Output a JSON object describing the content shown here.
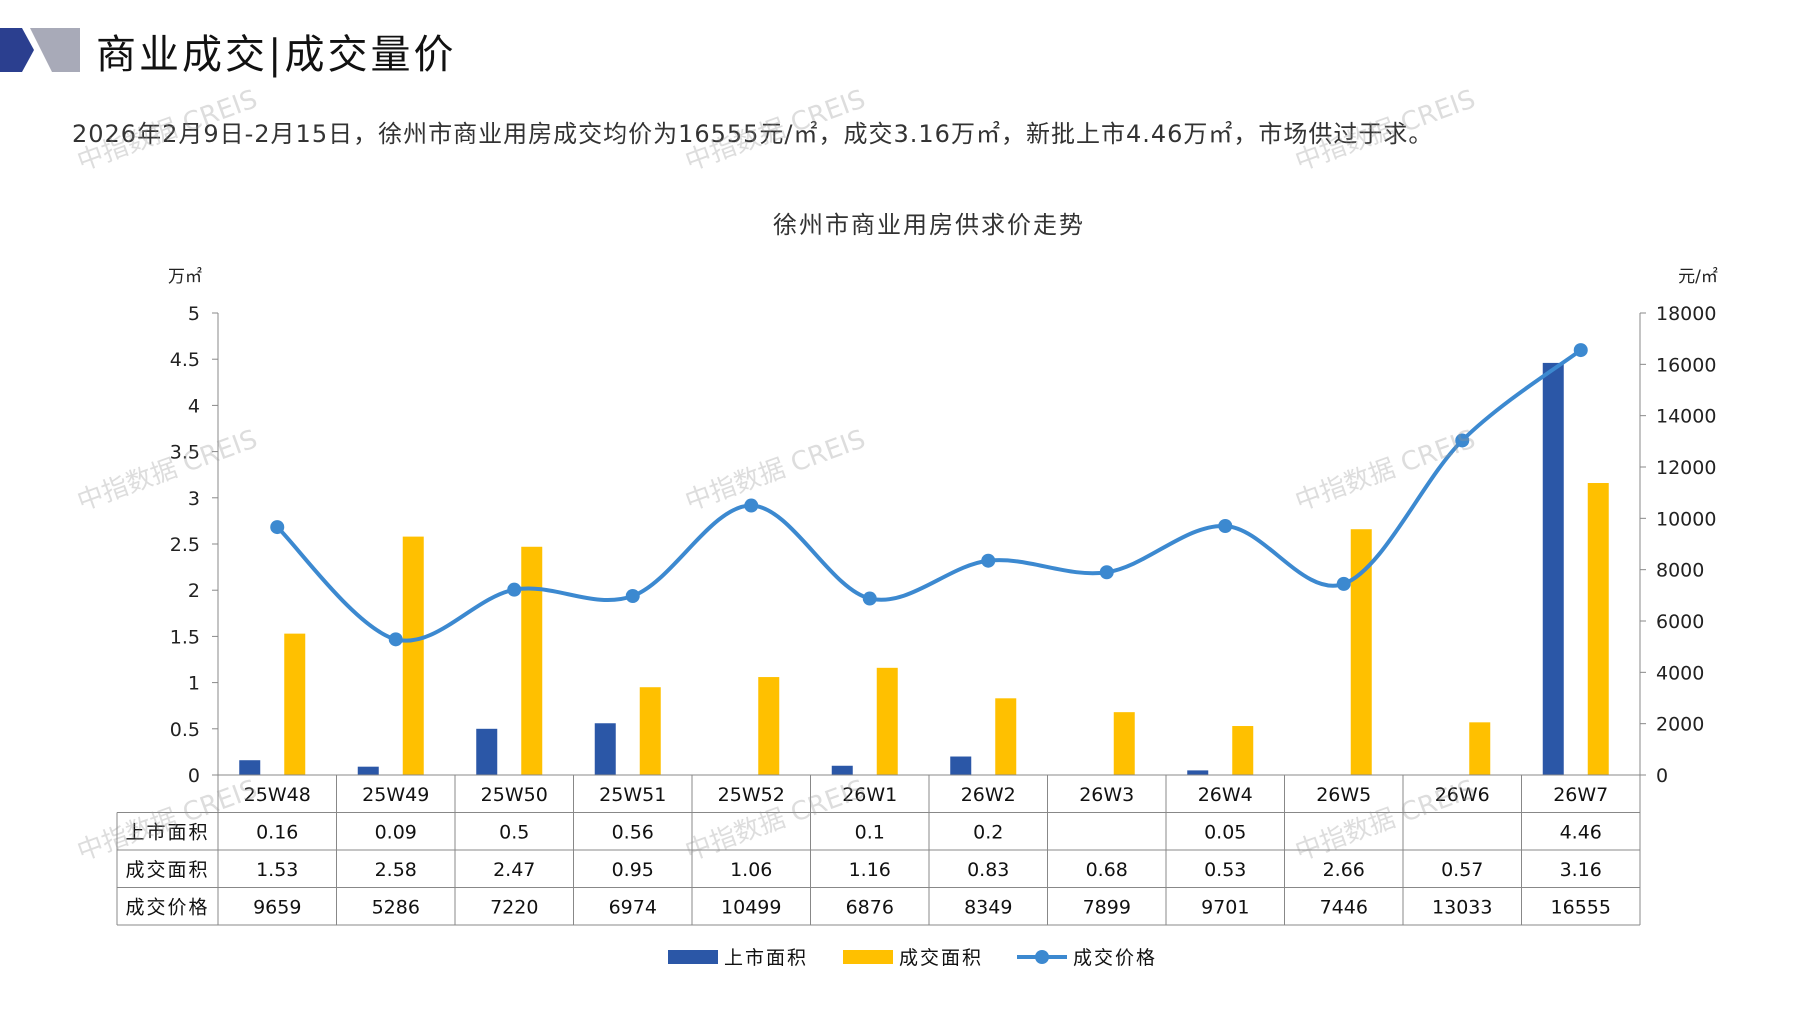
{
  "header": {
    "title": "商业成交|成交量价",
    "summary": "2026年2月9日-2月15日，徐州市商业用房成交均价为16555元/㎡，成交3.16万㎡，新批上市4.46万㎡，市场供过于求。"
  },
  "watermark_text": "中指数据 CREIS",
  "colors": {
    "supply": "#2b57a7",
    "deal": "#ffc000",
    "price": "#3c89d0",
    "logo_dark": "#2b3f8f",
    "logo_light": "#a8aab8"
  },
  "chart_data": {
    "type": "bar",
    "title": "徐州市商业用房供求价走势",
    "y_left_unit": "万㎡",
    "y_right_unit": "元/㎡",
    "ylim_left": [
      0,
      5
    ],
    "ylim_right": [
      0,
      18000
    ],
    "y_left_ticks": [
      "0",
      "0.5",
      "1",
      "1.5",
      "2",
      "2.5",
      "3",
      "3.5",
      "4",
      "4.5",
      "5"
    ],
    "y_right_ticks": [
      "0",
      "2000",
      "4000",
      "6000",
      "8000",
      "10000",
      "12000",
      "14000",
      "16000",
      "18000"
    ],
    "categories": [
      "25W48",
      "25W49",
      "25W50",
      "25W51",
      "25W52",
      "26W1",
      "26W2",
      "26W3",
      "26W4",
      "26W5",
      "26W6",
      "26W7"
    ],
    "series": [
      {
        "name": "上市面积",
        "type": "bar",
        "axis": "left",
        "values": [
          0.16,
          0.09,
          0.5,
          0.56,
          null,
          0.1,
          0.2,
          null,
          0.05,
          null,
          null,
          4.46
        ],
        "labels": [
          "0.16",
          "0.09",
          "0.5",
          "0.56",
          "",
          "0.1",
          "0.2",
          "",
          "0.05",
          "",
          "",
          "4.46"
        ]
      },
      {
        "name": "成交面积",
        "type": "bar",
        "axis": "left",
        "values": [
          1.53,
          2.58,
          2.47,
          0.95,
          1.06,
          1.16,
          0.83,
          0.68,
          0.53,
          2.66,
          0.57,
          3.16
        ],
        "labels": [
          "1.53",
          "2.58",
          "2.47",
          "0.95",
          "1.06",
          "1.16",
          "0.83",
          "0.68",
          "0.53",
          "2.66",
          "0.57",
          "3.16"
        ]
      },
      {
        "name": "成交价格",
        "type": "line",
        "axis": "right",
        "values": [
          9659,
          5286,
          7220,
          6974,
          10499,
          6876,
          8349,
          7899,
          9701,
          7446,
          13033,
          16555
        ],
        "labels": [
          "9659",
          "5286",
          "7220",
          "6974",
          "10499",
          "6876",
          "8349",
          "7899",
          "9701",
          "7446",
          "13033",
          "16555"
        ]
      }
    ],
    "legend_position": "bottom",
    "grid": false
  }
}
